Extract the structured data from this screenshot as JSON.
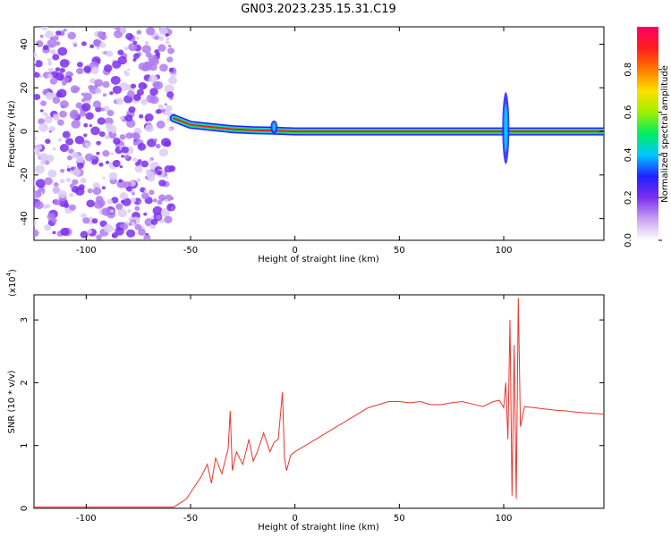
{
  "figure_title": "GN03.2023.235.15.31.C19",
  "chart_data": [
    {
      "type": "heatmap",
      "xlabel": "Height of straight line (km)",
      "ylabel": "Frequency (Hz)",
      "xlim": [
        -125,
        148
      ],
      "ylim": [
        -50,
        48
      ],
      "xticks": [
        -100,
        -50,
        0,
        50,
        100
      ],
      "yticks": [
        -40,
        -20,
        0,
        20,
        40
      ],
      "colorbar": {
        "label": "Normalized spectral amplitude",
        "range": [
          0,
          1
        ],
        "ticks": [
          "0.0",
          "0.2",
          "0.4",
          "0.6",
          "0.8"
        ],
        "tick_values": [
          0,
          0.2,
          0.4,
          0.6,
          0.8
        ],
        "colors": [
          "#ffffff",
          "#c9a2f2",
          "#7b2ef0",
          "#2020ff",
          "#00c8ff",
          "#00ee60",
          "#a0f000",
          "#ffe000",
          "#ff7800",
          "#ff1e1e",
          "#ff0066"
        ]
      },
      "noise_region_x": [
        -125,
        -58
      ],
      "ridge": [
        {
          "x": -58,
          "f": 6
        },
        {
          "x": -50,
          "f": 3
        },
        {
          "x": -40,
          "f": 2
        },
        {
          "x": -30,
          "f": 1
        },
        {
          "x": -20,
          "f": 0.5
        },
        {
          "x": -10,
          "f": 0.3
        },
        {
          "x": 0,
          "f": 0
        },
        {
          "x": 148,
          "f": 0
        }
      ],
      "ridge_features": [
        {
          "x": -10,
          "f_span": [
            -1,
            5
          ]
        },
        {
          "x": 101,
          "f_span": [
            -15,
            18
          ]
        }
      ]
    },
    {
      "type": "line",
      "xlabel": "Height of straight line (km)",
      "ylabel": "SNR (10 * v/v)",
      "y_multiplier": "(x10",
      "y_multiplier_exp": "4",
      "y_multiplier_close": ")",
      "xlim": [
        -125,
        148
      ],
      "ylim": [
        0,
        3.4
      ],
      "xticks": [
        -100,
        -50,
        0,
        50,
        100
      ],
      "yticks": [
        0,
        1,
        2,
        3
      ],
      "series": [
        {
          "color": "#e8352e",
          "x": [
            -125,
            -100,
            -75,
            -58,
            -52,
            -48,
            -45,
            -42,
            -40,
            -38,
            -35,
            -32,
            -31,
            -30,
            -28,
            -25,
            -22,
            -20,
            -18,
            -15,
            -12,
            -10,
            -8,
            -6,
            -5,
            -4,
            -2,
            0,
            5,
            10,
            15,
            20,
            25,
            30,
            35,
            40,
            45,
            50,
            55,
            60,
            65,
            70,
            75,
            80,
            85,
            90,
            95,
            98,
            100,
            101,
            102,
            103,
            104,
            105,
            106,
            107,
            108,
            110,
            115,
            120,
            125,
            130,
            135,
            140,
            148
          ],
          "y": [
            0.02,
            0.02,
            0.02,
            0.02,
            0.15,
            0.35,
            0.5,
            0.7,
            0.4,
            0.8,
            0.55,
            0.95,
            1.55,
            0.6,
            0.9,
            0.7,
            1.1,
            0.75,
            0.9,
            1.2,
            0.9,
            1.05,
            1.1,
            1.85,
            0.8,
            0.6,
            0.85,
            0.9,
            1.0,
            1.1,
            1.2,
            1.3,
            1.4,
            1.5,
            1.6,
            1.65,
            1.7,
            1.7,
            1.68,
            1.7,
            1.65,
            1.65,
            1.68,
            1.7,
            1.66,
            1.62,
            1.7,
            1.72,
            1.6,
            2.0,
            1.1,
            3.0,
            0.2,
            2.6,
            0.15,
            3.35,
            1.3,
            1.62,
            1.6,
            1.58,
            1.56,
            1.55,
            1.53,
            1.52,
            1.5
          ]
        }
      ]
    }
  ]
}
